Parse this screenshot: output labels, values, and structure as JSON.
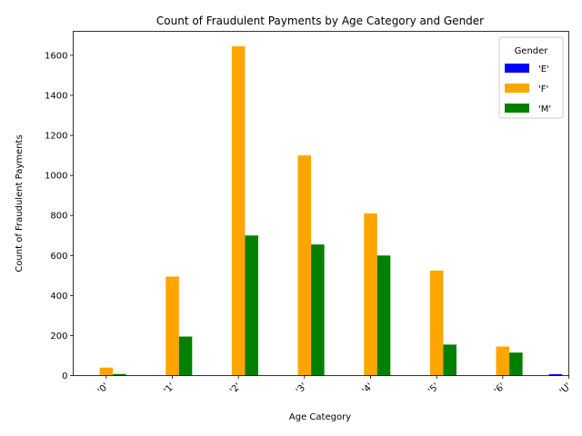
{
  "chart_data": {
    "type": "bar",
    "title": "Count of Fraudulent Payments by Age Category and Gender",
    "xlabel": "Age Category",
    "ylabel": "Count of Fraudulent Payments",
    "categories": [
      "'0'",
      "'1'",
      "'2'",
      "'3'",
      "'4'",
      "'5'",
      "'6'",
      "'U'"
    ],
    "series": [
      {
        "name": "'E'",
        "color": "#0000ff",
        "values": [
          0,
          0,
          0,
          0,
          0,
          0,
          0,
          7
        ]
      },
      {
        "name": "'F'",
        "color": "#ffa500",
        "values": [
          40,
          495,
          1645,
          1100,
          810,
          525,
          145,
          0
        ]
      },
      {
        "name": "'M'",
        "color": "#008000",
        "values": [
          8,
          195,
          700,
          655,
          600,
          155,
          115,
          0
        ]
      }
    ],
    "ylim": [
      0,
      1720
    ],
    "yticks": [
      0,
      200,
      400,
      600,
      800,
      1000,
      1200,
      1400,
      1600
    ],
    "legend": {
      "title": "Gender",
      "position": "top-right"
    },
    "grid": false
  }
}
